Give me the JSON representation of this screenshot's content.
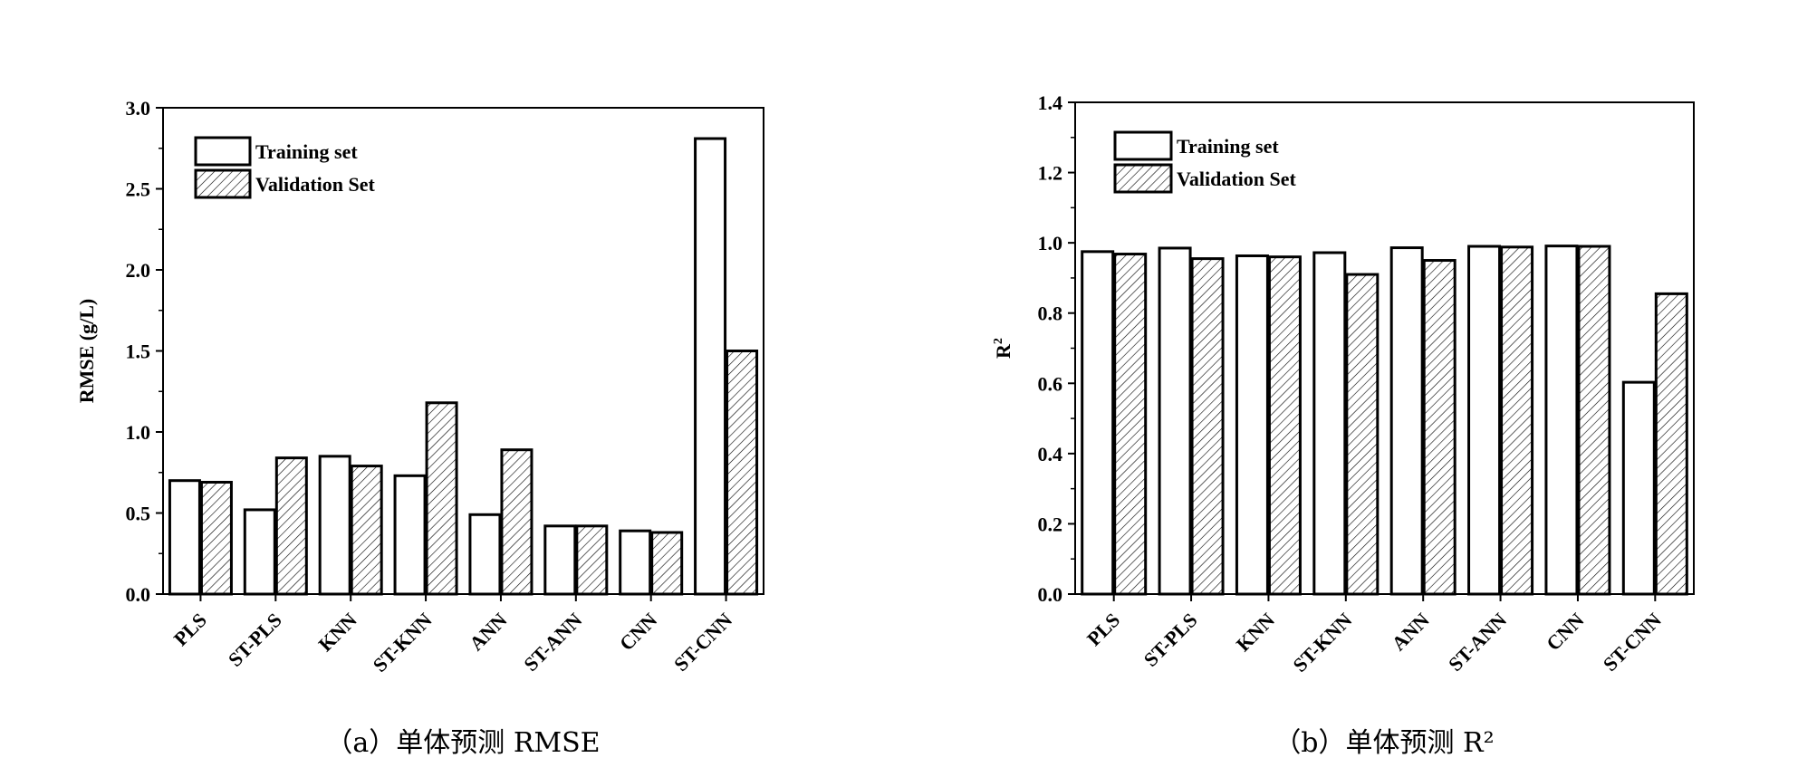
{
  "chart_data": [
    {
      "type": "bar",
      "caption": "（a）单体预测 RMSE",
      "categories": [
        "PLS",
        "ST-PLS",
        "KNN",
        "ST-KNN",
        "ANN",
        "ST-ANN",
        "CNN",
        "ST-CNN"
      ],
      "series": [
        {
          "name": "Training set",
          "values": [
            0.7,
            0.52,
            0.85,
            0.73,
            0.49,
            0.42,
            0.39,
            2.81
          ]
        },
        {
          "name": "Validation Set",
          "values": [
            0.69,
            0.84,
            0.79,
            1.18,
            0.89,
            0.42,
            0.38,
            1.5
          ]
        }
      ],
      "ylabel": "RMSE (g/L)",
      "ylim": [
        0,
        3.0
      ],
      "yticks": [
        "0.0",
        "0.5",
        "1.0",
        "1.5",
        "2.0",
        "2.5",
        "3.0"
      ],
      "legend_position": "top-left"
    },
    {
      "type": "bar",
      "caption": "（b）单体预测 R²",
      "categories": [
        "PLS",
        "ST-PLS",
        "KNN",
        "ST-KNN",
        "ANN",
        "ST-ANN",
        "CNN",
        "ST-CNN"
      ],
      "series": [
        {
          "name": "Training set",
          "values": [
            0.975,
            0.985,
            0.963,
            0.972,
            0.986,
            0.99,
            0.991,
            0.603
          ]
        },
        {
          "name": "Validation Set",
          "values": [
            0.968,
            0.955,
            0.96,
            0.91,
            0.95,
            0.988,
            0.99,
            0.855
          ]
        }
      ],
      "ylabel": "R",
      "ylabel_sup": "2",
      "ylim": [
        0,
        1.4
      ],
      "yticks": [
        "0.0",
        "0.2",
        "0.4",
        "0.6",
        "0.8",
        "1.0",
        "1.2",
        "1.4"
      ],
      "legend_position": "top-left"
    }
  ]
}
